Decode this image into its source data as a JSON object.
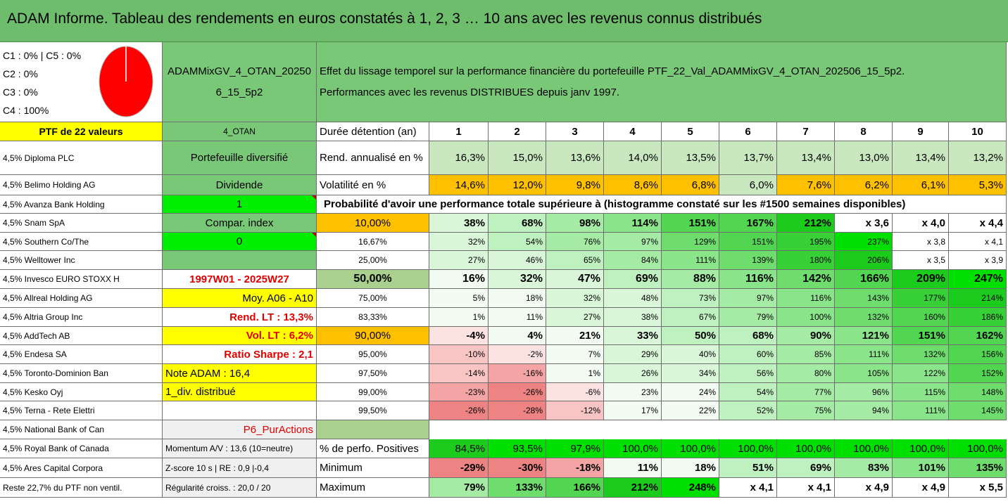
{
  "header": {
    "title": "ADAM Informe. Tableau des rendements en euros constatés à 1, 2, 3 … 10 ans avec les revenus connus distribués"
  },
  "allocation": {
    "lines": [
      "C1 : 0% | C5 : 0%",
      "C2 : 0%",
      "C3 : 0%",
      "C4 : 100%"
    ],
    "pie_slices": [
      {
        "name": "C1",
        "value": 0
      },
      {
        "name": "C2",
        "value": 0
      },
      {
        "name": "C3",
        "value": 0
      },
      {
        "name": "C4",
        "value": 100,
        "color": "#ff0000"
      },
      {
        "name": "C5",
        "value": 0
      }
    ]
  },
  "portfolio": {
    "name": "ADAMMixGV_4_OTAN_202506_15_5p2",
    "description_line1": "Effet du lissage temporel sur la performance financière du portefeuille PTF_22_Val_ADAMMixGV_4_OTAN_202506_15_5p2.",
    "description_line2": "Performances avec les revenus DISTRIBUES depuis janv 1997."
  },
  "holdings_header": "PTF de 22 valeurs",
  "holdings": [
    "4,5% Diploma PLC",
    "4,5% Belimo Holding AG",
    "4,5% Avanza Bank Holding",
    "4,5% Snam SpA",
    "4,5% Southern Co/The",
    "4,5% Welltower Inc",
    "4,5% Invesco EURO STOXX H",
    "4,5% Allreal Holding AG",
    "4,5% Altria Group Inc",
    "4,5% AddTech AB",
    "4,5% Endesa SA",
    "4,5% Toronto-Dominion Ban",
    "4,5% Kesko Oyj",
    "4,5% Terna - Rete Elettri",
    "4,5% National Bank of Can",
    "4,5% Royal Bank of Canada",
    "4,5% Ares Capital Corpora",
    "Reste 22,7% du PTF non ventil."
  ],
  "info": {
    "strategy": "4_OTAN",
    "type": "Portefeuille diversifié",
    "income": "Dividende",
    "index_flag": "1",
    "compar_label": "Compar. index",
    "compar_flag": "0",
    "blank": "",
    "period": "1997W01 - 2025W27",
    "moy": "Moy. A06 - A10",
    "rend_lt": "Rend. LT : 13,3%",
    "vol_lt": "Vol. LT : 6,2%",
    "sharpe": "Ratio Sharpe : 2,1",
    "note": "Note ADAM : 16,4",
    "div": "1_div. distribué",
    "blank2": "",
    "p6": "P6_PurActions",
    "momentum": "Momentum A/V : 13,6 (10=neutre)",
    "zscore": "Z-score 10 s | RE : 0,9 |-0,4",
    "regularite": "Régularité croiss. : 20,0 / 20"
  },
  "table": {
    "duration_label": "Durée détention (an)",
    "years": [
      "1",
      "2",
      "3",
      "4",
      "5",
      "6",
      "7",
      "8",
      "9",
      "10"
    ],
    "rend_label": "Rend. annualisé en %",
    "rend": [
      "16,3%",
      "15,0%",
      "13,6%",
      "14,0%",
      "13,5%",
      "13,7%",
      "13,4%",
      "13,0%",
      "13,4%",
      "13,2%"
    ],
    "vol_label": "Volatilité en %",
    "vol": [
      "14,6%",
      "12,0%",
      "9,8%",
      "8,6%",
      "6,8%",
      "6,0%",
      "7,6%",
      "6,2%",
      "6,1%",
      "5,3%"
    ],
    "prob_title": "Probabilité d'avoir une performance totale supérieure à (histogramme constaté sur les #1500 semaines disponibles)",
    "prob_rows": [
      {
        "p": "10,00%",
        "v": [
          "38%",
          "68%",
          "98%",
          "114%",
          "151%",
          "167%",
          "212%",
          "x 3,6",
          "x 4,0",
          "x 4,4"
        ]
      },
      {
        "p": "16,67%",
        "v": [
          "32%",
          "54%",
          "76%",
          "97%",
          "129%",
          "151%",
          "195%",
          "237%",
          "x 3,8",
          "x 4,1"
        ]
      },
      {
        "p": "25,00%",
        "v": [
          "27%",
          "46%",
          "65%",
          "84%",
          "111%",
          "139%",
          "180%",
          "206%",
          "x 3,5",
          "x 3,9"
        ]
      },
      {
        "p": "50,00%",
        "v": [
          "16%",
          "32%",
          "47%",
          "69%",
          "88%",
          "116%",
          "142%",
          "166%",
          "209%",
          "247%"
        ]
      },
      {
        "p": "75,00%",
        "v": [
          "5%",
          "18%",
          "32%",
          "48%",
          "73%",
          "97%",
          "116%",
          "143%",
          "177%",
          "214%"
        ]
      },
      {
        "p": "83,33%",
        "v": [
          "1%",
          "11%",
          "27%",
          "38%",
          "67%",
          "79%",
          "100%",
          "132%",
          "160%",
          "186%"
        ]
      },
      {
        "p": "90,00%",
        "v": [
          "-4%",
          "4%",
          "21%",
          "33%",
          "50%",
          "68%",
          "90%",
          "121%",
          "151%",
          "162%"
        ]
      },
      {
        "p": "95,00%",
        "v": [
          "-10%",
          "-2%",
          "7%",
          "29%",
          "40%",
          "60%",
          "85%",
          "111%",
          "132%",
          "156%"
        ]
      },
      {
        "p": "97,50%",
        "v": [
          "-14%",
          "-16%",
          "1%",
          "26%",
          "34%",
          "56%",
          "80%",
          "105%",
          "122%",
          "152%"
        ]
      },
      {
        "p": "99,00%",
        "v": [
          "-23%",
          "-26%",
          "-6%",
          "23%",
          "24%",
          "54%",
          "77%",
          "96%",
          "115%",
          "148%"
        ]
      },
      {
        "p": "99,50%",
        "v": [
          "-26%",
          "-28%",
          "-12%",
          "17%",
          "22%",
          "52%",
          "75%",
          "94%",
          "111%",
          "145%"
        ]
      }
    ],
    "pos_label": "% de perfo. Positives",
    "pos": [
      "84,5%",
      "93,5%",
      "97,9%",
      "100,0%",
      "100,0%",
      "100,0%",
      "100,0%",
      "100,0%",
      "100,0%",
      "100,0%"
    ],
    "min_label": "Minimum",
    "min": [
      "-29%",
      "-30%",
      "-18%",
      "11%",
      "18%",
      "51%",
      "69%",
      "83%",
      "101%",
      "135%"
    ],
    "max_label": "Maximum",
    "max": [
      "79%",
      "133%",
      "166%",
      "212%",
      "248%",
      "x 4,1",
      "x 4,1",
      "x 4,9",
      "x 4,9",
      "x 5,5"
    ]
  },
  "colors": {
    "header_green": "#6dbd6d",
    "yellow": "#ffff00",
    "orange": "#ffc000",
    "bright_green": "#00ee00",
    "pie_red": "#ff0000"
  }
}
